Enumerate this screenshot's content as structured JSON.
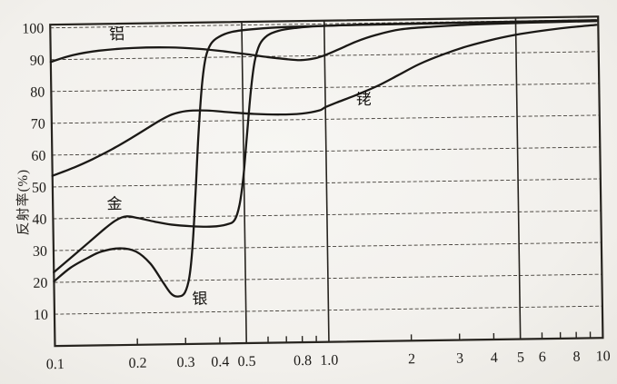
{
  "figure": {
    "ylabel": "反射率(%)",
    "paper_color": "#f2f0ec",
    "ink_color": "#1b1916"
  },
  "chart_data": {
    "type": "line",
    "title": "",
    "xlabel": "",
    "ylabel": "反射率(%)",
    "x_scale": "log",
    "xlim": [
      0.1,
      10
    ],
    "ylim": [
      0,
      101
    ],
    "grid": "horizontal dashed gridlines every 10%; solid vertical rules at x = 0.5, 1.0 and 5; full box border",
    "legend_position": "inline-labels",
    "y_ticks": [
      10,
      20,
      30,
      40,
      50,
      60,
      70,
      80,
      90,
      100
    ],
    "y_gridlines": [
      10,
      20,
      30,
      40,
      50,
      60,
      70,
      80,
      90,
      100
    ],
    "x_gridlines": [
      0.5,
      1.0,
      5
    ],
    "x_tick_marks": [
      0.2,
      0.3,
      0.4,
      0.6,
      0.7,
      0.8,
      0.9,
      2,
      3,
      4,
      6,
      7,
      8,
      9
    ],
    "x_tick_labels": [
      {
        "v": 0.1,
        "label": "0.1"
      },
      {
        "v": 0.2,
        "label": "0.2"
      },
      {
        "v": 0.3,
        "label": "0.3"
      },
      {
        "v": 0.4,
        "label": "0.4"
      },
      {
        "v": 0.5,
        "label": "0.5"
      },
      {
        "v": 0.8,
        "label": "0.8"
      },
      {
        "v": 1.0,
        "label": "1.0"
      },
      {
        "v": 2,
        "label": "2"
      },
      {
        "v": 3,
        "label": "3"
      },
      {
        "v": 4,
        "label": "4"
      },
      {
        "v": 5,
        "label": "5"
      },
      {
        "v": 6,
        "label": "6"
      },
      {
        "v": 8,
        "label": "8"
      },
      {
        "v": 10,
        "label": "10"
      }
    ],
    "series": [
      {
        "name": "铝",
        "name_en": "aluminum",
        "label_x": 0.175,
        "label_y": 97.8,
        "points": [
          [
            0.1,
            89.3
          ],
          [
            0.12,
            91.3
          ],
          [
            0.15,
            92.6
          ],
          [
            0.2,
            93.3
          ],
          [
            0.27,
            93.3
          ],
          [
            0.35,
            92.7
          ],
          [
            0.43,
            91.8
          ],
          [
            0.52,
            90.8
          ],
          [
            0.62,
            89.8
          ],
          [
            0.72,
            89.1
          ],
          [
            0.82,
            88.7
          ],
          [
            0.92,
            89.2
          ],
          [
            1.0,
            90.1
          ],
          [
            1.12,
            91.8
          ],
          [
            1.3,
            94.2
          ],
          [
            1.55,
            96.3
          ],
          [
            1.9,
            97.9
          ],
          [
            2.5,
            98.6
          ],
          [
            3.5,
            99.1
          ],
          [
            5.5,
            99.4
          ],
          [
            9.85,
            99.6
          ]
        ]
      },
      {
        "name": "金",
        "name_en": "gold",
        "label_x": 0.168,
        "label_y": 44.5,
        "points": [
          [
            0.1,
            23.2
          ],
          [
            0.115,
            27.5
          ],
          [
            0.135,
            32.5
          ],
          [
            0.155,
            36.8
          ],
          [
            0.17,
            39.3
          ],
          [
            0.185,
            40.4
          ],
          [
            0.205,
            39.8
          ],
          [
            0.235,
            38.6
          ],
          [
            0.27,
            37.6
          ],
          [
            0.32,
            37.0
          ],
          [
            0.38,
            36.8
          ],
          [
            0.43,
            37.4
          ],
          [
            0.46,
            38.8
          ],
          [
            0.48,
            43.5
          ],
          [
            0.497,
            52
          ],
          [
            0.515,
            65
          ],
          [
            0.535,
            79
          ],
          [
            0.555,
            88.5
          ],
          [
            0.58,
            93.8
          ],
          [
            0.62,
            96.6
          ],
          [
            0.68,
            98.0
          ],
          [
            0.78,
            98.8
          ],
          [
            0.95,
            99.3
          ],
          [
            1.5,
            99.6
          ],
          [
            4,
            99.75
          ],
          [
            9.85,
            99.85
          ]
        ]
      },
      {
        "name": "银",
        "name_en": "silver",
        "label_x": 0.34,
        "label_y": 14.3,
        "points": [
          [
            0.1,
            20.3
          ],
          [
            0.115,
            24.5
          ],
          [
            0.135,
            27.8
          ],
          [
            0.15,
            29.5
          ],
          [
            0.175,
            30.4
          ],
          [
            0.2,
            29.3
          ],
          [
            0.225,
            25.5
          ],
          [
            0.25,
            19.5
          ],
          [
            0.268,
            15.8
          ],
          [
            0.285,
            15.0
          ],
          [
            0.3,
            16.2
          ],
          [
            0.312,
            21
          ],
          [
            0.322,
            31
          ],
          [
            0.332,
            47
          ],
          [
            0.343,
            66
          ],
          [
            0.355,
            81
          ],
          [
            0.368,
            90
          ],
          [
            0.385,
            94.2
          ],
          [
            0.41,
            96.3
          ],
          [
            0.46,
            97.9
          ],
          [
            0.56,
            98.7
          ],
          [
            0.75,
            99.2
          ],
          [
            1.2,
            99.45
          ],
          [
            3,
            99.65
          ],
          [
            9.85,
            99.8
          ]
        ]
      },
      {
        "name": "铑",
        "name_en": "rhodium",
        "label_x": 1.38,
        "label_y": 76.2,
        "points": [
          [
            0.1,
            53.5
          ],
          [
            0.12,
            56
          ],
          [
            0.14,
            58.5
          ],
          [
            0.165,
            61.5
          ],
          [
            0.195,
            65
          ],
          [
            0.225,
            68.2
          ],
          [
            0.25,
            70.5
          ],
          [
            0.275,
            72.2
          ],
          [
            0.31,
            73.2
          ],
          [
            0.37,
            73.3
          ],
          [
            0.44,
            72.7
          ],
          [
            0.55,
            72.0
          ],
          [
            0.68,
            71.7
          ],
          [
            0.82,
            71.9
          ],
          [
            0.95,
            72.8
          ],
          [
            1.0,
            73.8
          ],
          [
            1.1,
            75.2
          ],
          [
            1.3,
            77.5
          ],
          [
            1.55,
            80.2
          ],
          [
            1.85,
            83.5
          ],
          [
            2.2,
            86.8
          ],
          [
            2.7,
            89.8
          ],
          [
            3.3,
            92.2
          ],
          [
            4.2,
            94.4
          ],
          [
            5.2,
            95.9
          ],
          [
            6.5,
            97.0
          ],
          [
            8,
            97.8
          ],
          [
            9.85,
            98.4
          ]
        ]
      }
    ]
  }
}
